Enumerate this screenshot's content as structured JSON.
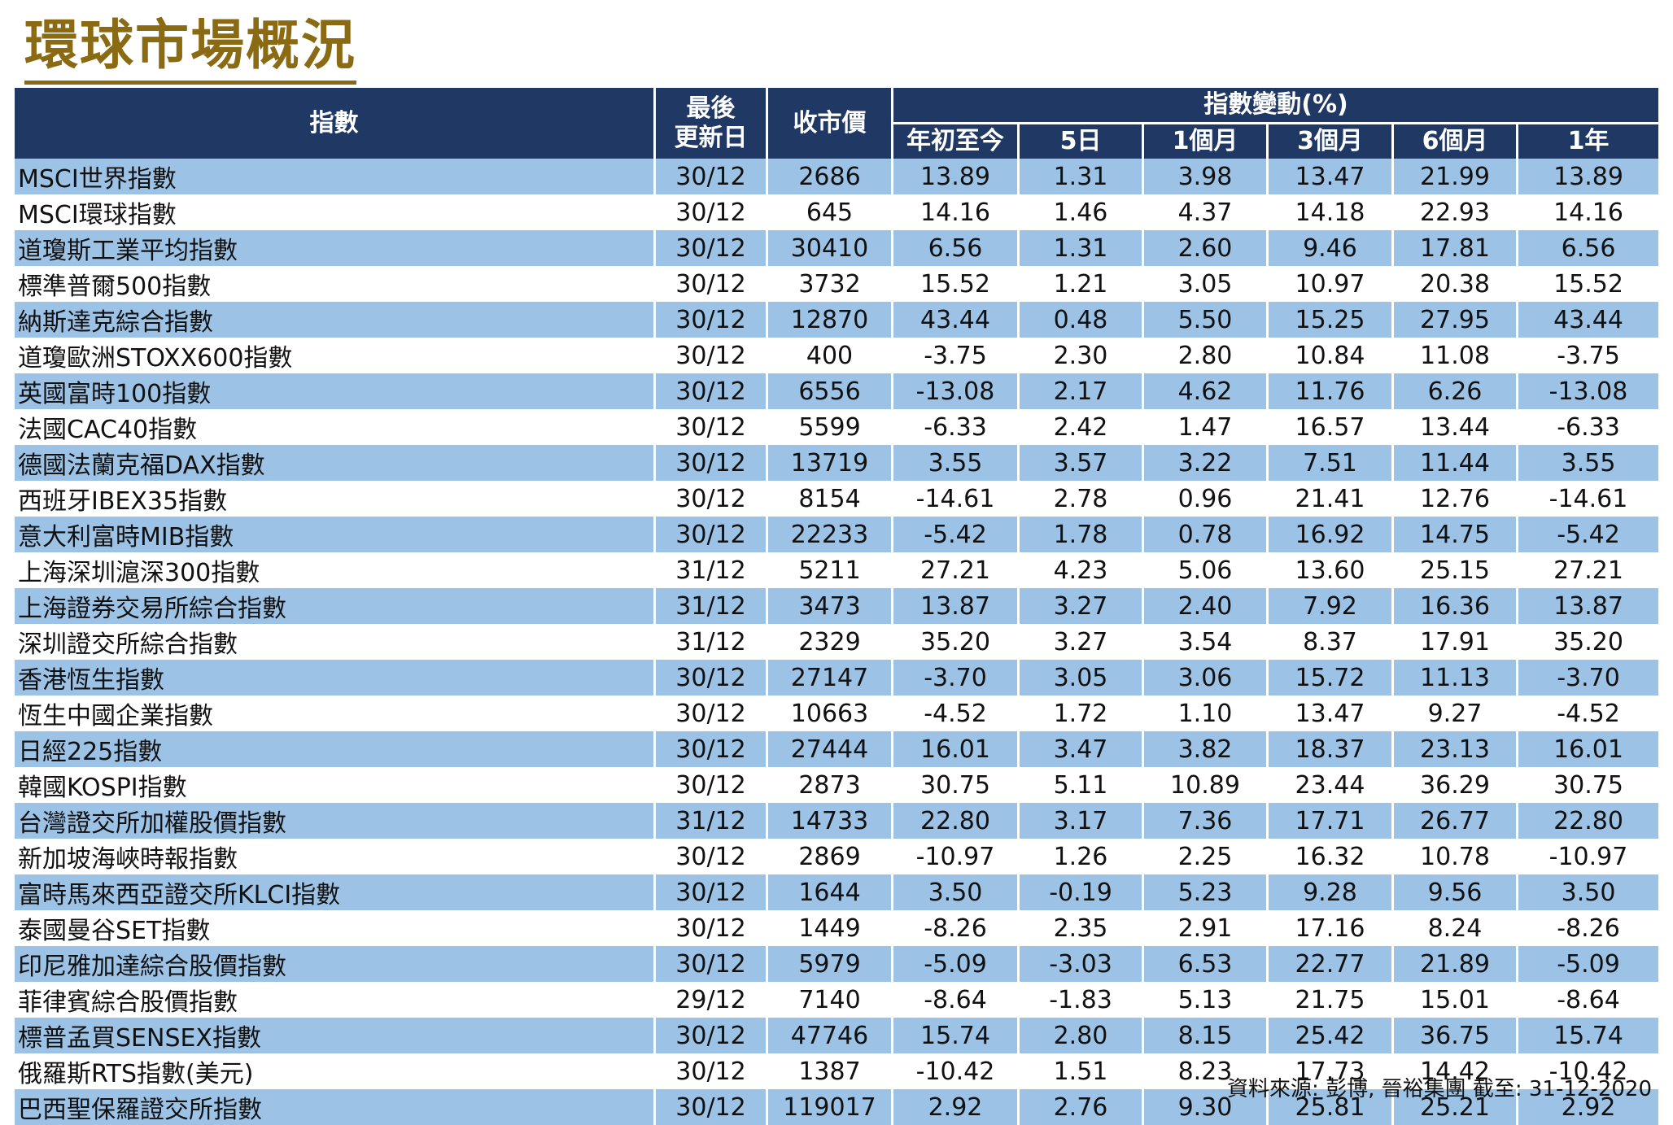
{
  "title": "環球市場概況",
  "header": {
    "index": "指數",
    "last_update": "最後\n更新日",
    "last_update_l1": "最後",
    "last_update_l2": "更新日",
    "close": "收市價",
    "change_group": "指數變動(%)",
    "periods": [
      "年初至今",
      "5日",
      "1個月",
      "3個月",
      "6個月",
      "1年"
    ]
  },
  "rows": [
    {
      "name": "MSCI世界指數",
      "date": "30/12",
      "close": "2686",
      "ytd": "13.89",
      "d5": "1.31",
      "m1": "3.98",
      "m3": "13.47",
      "m6": "21.99",
      "y1": "13.89"
    },
    {
      "name": "MSCI環球指數",
      "date": "30/12",
      "close": "645",
      "ytd": "14.16",
      "d5": "1.46",
      "m1": "4.37",
      "m3": "14.18",
      "m6": "22.93",
      "y1": "14.16"
    },
    {
      "name": "道瓊斯工業平均指數",
      "date": "30/12",
      "close": "30410",
      "ytd": "6.56",
      "d5": "1.31",
      "m1": "2.60",
      "m3": "9.46",
      "m6": "17.81",
      "y1": "6.56"
    },
    {
      "name": "標準普爾500指數",
      "date": "30/12",
      "close": "3732",
      "ytd": "15.52",
      "d5": "1.21",
      "m1": "3.05",
      "m3": "10.97",
      "m6": "20.38",
      "y1": "15.52"
    },
    {
      "name": "納斯達克綜合指數",
      "date": "30/12",
      "close": "12870",
      "ytd": "43.44",
      "d5": "0.48",
      "m1": "5.50",
      "m3": "15.25",
      "m6": "27.95",
      "y1": "43.44"
    },
    {
      "name": "道瓊歐洲STOXX600指數",
      "date": "30/12",
      "close": "400",
      "ytd": "-3.75",
      "d5": "2.30",
      "m1": "2.80",
      "m3": "10.84",
      "m6": "11.08",
      "y1": "-3.75"
    },
    {
      "name": "英國富時100指數",
      "date": "30/12",
      "close": "6556",
      "ytd": "-13.08",
      "d5": "2.17",
      "m1": "4.62",
      "m3": "11.76",
      "m6": "6.26",
      "y1": "-13.08"
    },
    {
      "name": "法國CAC40指數",
      "date": "30/12",
      "close": "5599",
      "ytd": "-6.33",
      "d5": "2.42",
      "m1": "1.47",
      "m3": "16.57",
      "m6": "13.44",
      "y1": "-6.33"
    },
    {
      "name": "德國法蘭克福DAX指數",
      "date": "30/12",
      "close": "13719",
      "ytd": "3.55",
      "d5": "3.57",
      "m1": "3.22",
      "m3": "7.51",
      "m6": "11.44",
      "y1": "3.55"
    },
    {
      "name": "西班牙IBEX35指數",
      "date": "30/12",
      "close": "8154",
      "ytd": "-14.61",
      "d5": "2.78",
      "m1": "0.96",
      "m3": "21.41",
      "m6": "12.76",
      "y1": "-14.61"
    },
    {
      "name": "意大利富時MIB指數",
      "date": "30/12",
      "close": "22233",
      "ytd": "-5.42",
      "d5": "1.78",
      "m1": "0.78",
      "m3": "16.92",
      "m6": "14.75",
      "y1": "-5.42"
    },
    {
      "name": "上海深圳滬深300指數",
      "date": "31/12",
      "close": "5211",
      "ytd": "27.21",
      "d5": "4.23",
      "m1": "5.06",
      "m3": "13.60",
      "m6": "25.15",
      "y1": "27.21"
    },
    {
      "name": "上海證券交易所綜合指數",
      "date": "31/12",
      "close": "3473",
      "ytd": "13.87",
      "d5": "3.27",
      "m1": "2.40",
      "m3": "7.92",
      "m6": "16.36",
      "y1": "13.87"
    },
    {
      "name": "深圳證交所綜合指數",
      "date": "31/12",
      "close": "2329",
      "ytd": "35.20",
      "d5": "3.27",
      "m1": "3.54",
      "m3": "8.37",
      "m6": "17.91",
      "y1": "35.20"
    },
    {
      "name": "香港恆生指數",
      "date": "30/12",
      "close": "27147",
      "ytd": "-3.70",
      "d5": "3.05",
      "m1": "3.06",
      "m3": "15.72",
      "m6": "11.13",
      "y1": "-3.70"
    },
    {
      "name": "恆生中國企業指數",
      "date": "30/12",
      "close": "10663",
      "ytd": "-4.52",
      "d5": "1.72",
      "m1": "1.10",
      "m3": "13.47",
      "m6": "9.27",
      "y1": "-4.52"
    },
    {
      "name": "日經225指數",
      "date": "30/12",
      "close": "27444",
      "ytd": "16.01",
      "d5": "3.47",
      "m1": "3.82",
      "m3": "18.37",
      "m6": "23.13",
      "y1": "16.01"
    },
    {
      "name": "韓國KOSPI指數",
      "date": "30/12",
      "close": "2873",
      "ytd": "30.75",
      "d5": "5.11",
      "m1": "10.89",
      "m3": "23.44",
      "m6": "36.29",
      "y1": "30.75"
    },
    {
      "name": "台灣證交所加權股價指數",
      "date": "31/12",
      "close": "14733",
      "ytd": "22.80",
      "d5": "3.17",
      "m1": "7.36",
      "m3": "17.71",
      "m6": "26.77",
      "y1": "22.80"
    },
    {
      "name": "新加坡海峽時報指數",
      "date": "30/12",
      "close": "2869",
      "ytd": "-10.97",
      "d5": "1.26",
      "m1": "2.25",
      "m3": "16.32",
      "m6": "10.78",
      "y1": "-10.97"
    },
    {
      "name": "富時馬來西亞證交所KLCI指數",
      "date": "30/12",
      "close": "1644",
      "ytd": "3.50",
      "d5": "-0.19",
      "m1": "5.23",
      "m3": "9.28",
      "m6": "9.56",
      "y1": "3.50"
    },
    {
      "name": "泰國曼谷SET指數",
      "date": "30/12",
      "close": "1449",
      "ytd": "-8.26",
      "d5": "2.35",
      "m1": "2.91",
      "m3": "17.16",
      "m6": "8.24",
      "y1": "-8.26"
    },
    {
      "name": "印尼雅加達綜合股價指數",
      "date": "30/12",
      "close": "5979",
      "ytd": "-5.09",
      "d5": "-3.03",
      "m1": "6.53",
      "m3": "22.77",
      "m6": "21.89",
      "y1": "-5.09"
    },
    {
      "name": "菲律賓綜合股價指數",
      "date": "29/12",
      "close": "7140",
      "ytd": "-8.64",
      "d5": "-1.83",
      "m1": "5.13",
      "m3": "21.75",
      "m6": "15.01",
      "y1": "-8.64"
    },
    {
      "name": "標普孟買SENSEX指數",
      "date": "30/12",
      "close": "47746",
      "ytd": "15.74",
      "d5": "2.80",
      "m1": "8.15",
      "m3": "25.42",
      "m6": "36.75",
      "y1": "15.74"
    },
    {
      "name": "俄羅斯RTS指數(美元)",
      "date": "30/12",
      "close": "1387",
      "ytd": "-10.42",
      "d5": "1.51",
      "m1": "8.23",
      "m3": "17.73",
      "m6": "14.42",
      "y1": "-10.42"
    },
    {
      "name": "巴西聖保羅證交所指數",
      "date": "30/12",
      "close": "119017",
      "ytd": "2.92",
      "d5": "2.76",
      "m1": "9.30",
      "m3": "25.81",
      "m6": "25.21",
      "y1": "2.92"
    }
  ],
  "footer": {
    "source": "資料來源: 彭博, 晉裕集團  截至:  31-12-2020"
  },
  "colors": {
    "title": "#8b6a14",
    "header_bg": "#203864",
    "stripe": "#9cc2e6"
  }
}
